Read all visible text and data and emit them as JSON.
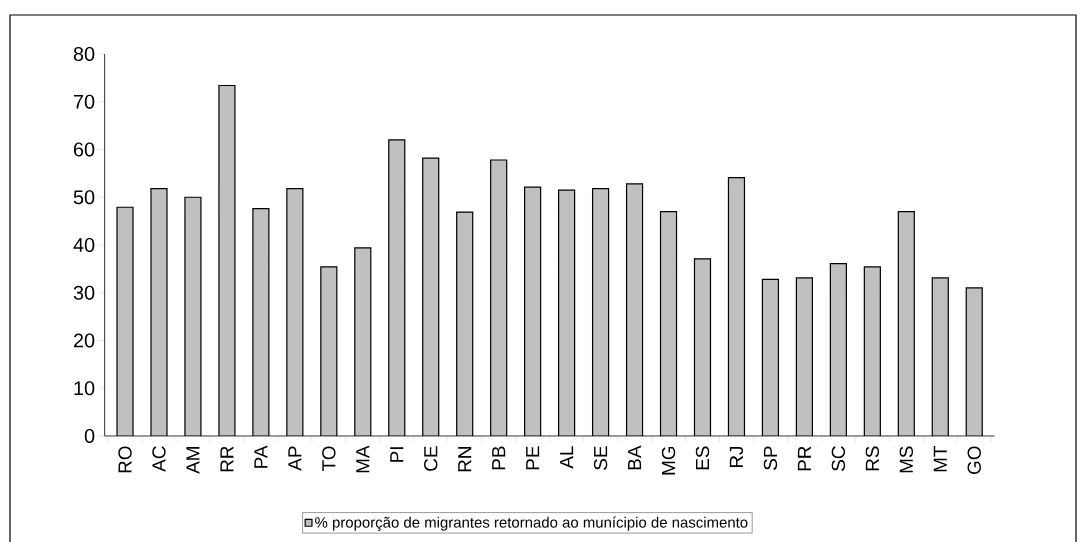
{
  "chart_data": {
    "type": "bar",
    "categories": [
      "RO",
      "AC",
      "AM",
      "RR",
      "PA",
      "AP",
      "TO",
      "MA",
      "PI",
      "CE",
      "RN",
      "PB",
      "PE",
      "AL",
      "SE",
      "BA",
      "MG",
      "ES",
      "RJ",
      "SP",
      "PR",
      "SC",
      "RS",
      "MS",
      "MT",
      "GO"
    ],
    "series": [
      {
        "name": "% proporção de migrantes retornado ao munícipio de nascimento",
        "color": "#c0c0c0",
        "values": [
          47.9,
          51.8,
          50.0,
          73.4,
          47.6,
          51.8,
          35.4,
          39.4,
          62.0,
          58.2,
          46.9,
          57.8,
          52.1,
          51.5,
          51.8,
          52.8,
          47.0,
          37.1,
          54.1,
          32.8,
          33.1,
          36.1,
          35.4,
          47.0,
          33.1,
          31.0
        ]
      }
    ],
    "ylim": [
      0,
      80
    ],
    "yticks": [
      0,
      10,
      20,
      30,
      40,
      50,
      60,
      70,
      80
    ],
    "grid": false,
    "legend": "bottom"
  }
}
